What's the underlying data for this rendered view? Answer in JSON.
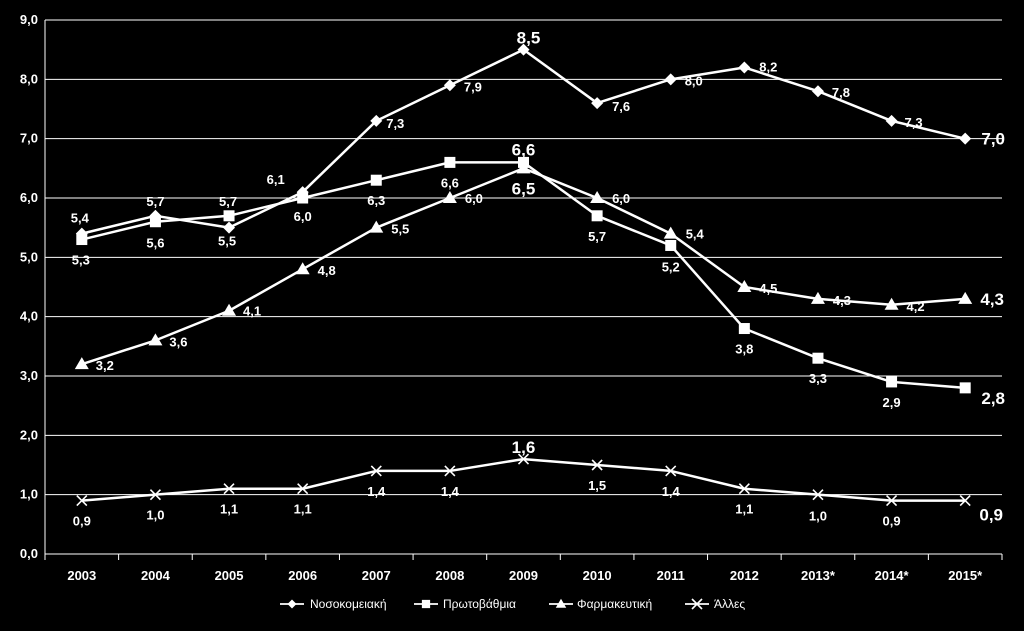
{
  "chart_data": {
    "type": "line",
    "title": "",
    "xlabel": "",
    "ylabel": "",
    "ylim": [
      0,
      9
    ],
    "y_ticks": [
      "0,0",
      "1,0",
      "2,0",
      "3,0",
      "4,0",
      "5,0",
      "6,0",
      "7,0",
      "8,0",
      "9,0"
    ],
    "grid": true,
    "legend_position": "bottom",
    "categories": [
      "2003",
      "2004",
      "2005",
      "2006",
      "2007",
      "2008",
      "2009",
      "2010",
      "2011",
      "2012",
      "2013*",
      "2014*",
      "2015*"
    ],
    "series": [
      {
        "name": "Νοσοκομειακή",
        "marker": "diamond",
        "values": [
          5.4,
          5.7,
          5.5,
          6.1,
          7.3,
          7.9,
          8.5,
          7.6,
          8.0,
          8.2,
          7.8,
          7.3,
          7.0
        ],
        "labels": [
          "5,4",
          "5,7",
          "5,5",
          "6,1",
          "7,3",
          "7,9",
          "8,5",
          "7,6",
          "8,0",
          "8,2",
          "7,8",
          "7,3",
          "7,0"
        ]
      },
      {
        "name": "Πρωτοβάθμια",
        "marker": "square",
        "values": [
          5.3,
          5.6,
          5.7,
          6.0,
          6.3,
          6.6,
          6.6,
          5.7,
          5.2,
          3.8,
          3.3,
          2.9,
          2.8
        ],
        "labels": [
          "5,3",
          "5,6",
          "5,7",
          "6,0",
          "6,3",
          "6,6",
          "6,6",
          "5,7",
          "5,2",
          "3,8",
          "3,3",
          "2,9",
          "2,8"
        ]
      },
      {
        "name": "Φαρμακευτική",
        "marker": "triangle",
        "values": [
          3.2,
          3.6,
          4.1,
          4.8,
          5.5,
          6.0,
          6.5,
          6.0,
          5.4,
          4.5,
          4.3,
          4.2,
          4.3
        ],
        "labels": [
          "3,2",
          "3,6",
          "4,1",
          "4,8",
          "5,5",
          "6,0",
          "6,5",
          "6,0",
          "5,4",
          "4,5",
          "4,3",
          "4,2",
          "4,3"
        ]
      },
      {
        "name": "Άλλες",
        "marker": "x",
        "values": [
          0.9,
          1.0,
          1.1,
          1.1,
          1.4,
          1.4,
          1.6,
          1.5,
          1.4,
          1.1,
          1.0,
          0.9,
          0.9
        ],
        "labels": [
          "0,9",
          "1,0",
          "1,1",
          "1,1",
          "1,4",
          "1,4",
          "1,6",
          "1,5",
          "1,4",
          "1,1",
          "1,0",
          "0,9",
          "0,9"
        ]
      }
    ]
  }
}
